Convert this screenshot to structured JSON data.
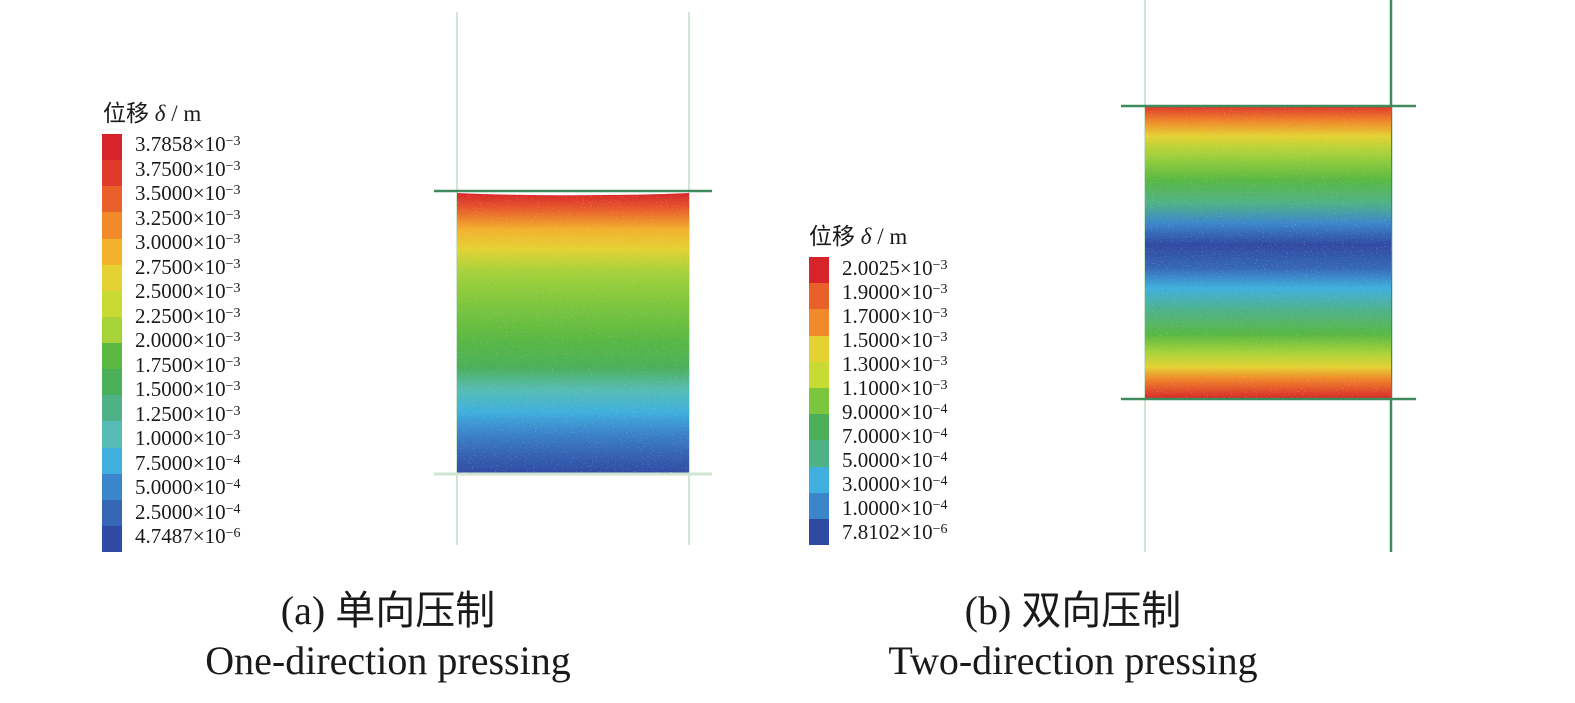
{
  "panel_a": {
    "legend_title_cn": "位移",
    "legend_symbol": "δ",
    "legend_unit": "/ m",
    "legend_ticks": [
      {
        "mant": "3.7858×10",
        "exp": "−3"
      },
      {
        "mant": "3.7500×10",
        "exp": "−3"
      },
      {
        "mant": "3.5000×10",
        "exp": "−3"
      },
      {
        "mant": "3.2500×10",
        "exp": "−3"
      },
      {
        "mant": "3.0000×10",
        "exp": "−3"
      },
      {
        "mant": "2.7500×10",
        "exp": "−3"
      },
      {
        "mant": "2.5000×10",
        "exp": "−3"
      },
      {
        "mant": "2.2500×10",
        "exp": "−3"
      },
      {
        "mant": "2.0000×10",
        "exp": "−3"
      },
      {
        "mant": "1.7500×10",
        "exp": "−3"
      },
      {
        "mant": "1.5000×10",
        "exp": "−3"
      },
      {
        "mant": "1.2500×10",
        "exp": "−3"
      },
      {
        "mant": "1.0000×10",
        "exp": "−3"
      },
      {
        "mant": "7.5000×10",
        "exp": "−4"
      },
      {
        "mant": "5.0000×10",
        "exp": "−4"
      },
      {
        "mant": "2.5000×10",
        "exp": "−4"
      },
      {
        "mant": "4.7487×10",
        "exp": "−6"
      }
    ],
    "caption_cn": "(a) 单向压制",
    "caption_en": "One-direction pressing"
  },
  "panel_b": {
    "legend_title_cn": "位移",
    "legend_symbol": "δ",
    "legend_unit": "/ m",
    "legend_ticks": [
      {
        "mant": "2.0025×10",
        "exp": "−3"
      },
      {
        "mant": "1.9000×10",
        "exp": "−3"
      },
      {
        "mant": "1.7000×10",
        "exp": "−3"
      },
      {
        "mant": "1.5000×10",
        "exp": "−3"
      },
      {
        "mant": "1.3000×10",
        "exp": "−3"
      },
      {
        "mant": "1.1000×10",
        "exp": "−3"
      },
      {
        "mant": "9.0000×10",
        "exp": "−4"
      },
      {
        "mant": "7.0000×10",
        "exp": "−4"
      },
      {
        "mant": "5.0000×10",
        "exp": "−4"
      },
      {
        "mant": "3.0000×10",
        "exp": "−4"
      },
      {
        "mant": "1.0000×10",
        "exp": "−4"
      },
      {
        "mant": "7.8102×10",
        "exp": "−6"
      }
    ],
    "caption_cn": "(b) 双向压制",
    "caption_en": "Two-direction pressing"
  },
  "colors": {
    "scale": [
      "#d7242a",
      "#df3a2a",
      "#e9602a",
      "#f08a2a",
      "#f3b12d",
      "#e3d232",
      "#c8da34",
      "#a6d23a",
      "#7cc63e",
      "#5ab843",
      "#4cb05a",
      "#4fb287",
      "#56bcb5",
      "#3fb0de",
      "#3b86cb",
      "#3667b6",
      "#2f4aa3"
    ],
    "frame_line": "#3f8a5f",
    "frame_line_light": "#cfe6d3"
  }
}
